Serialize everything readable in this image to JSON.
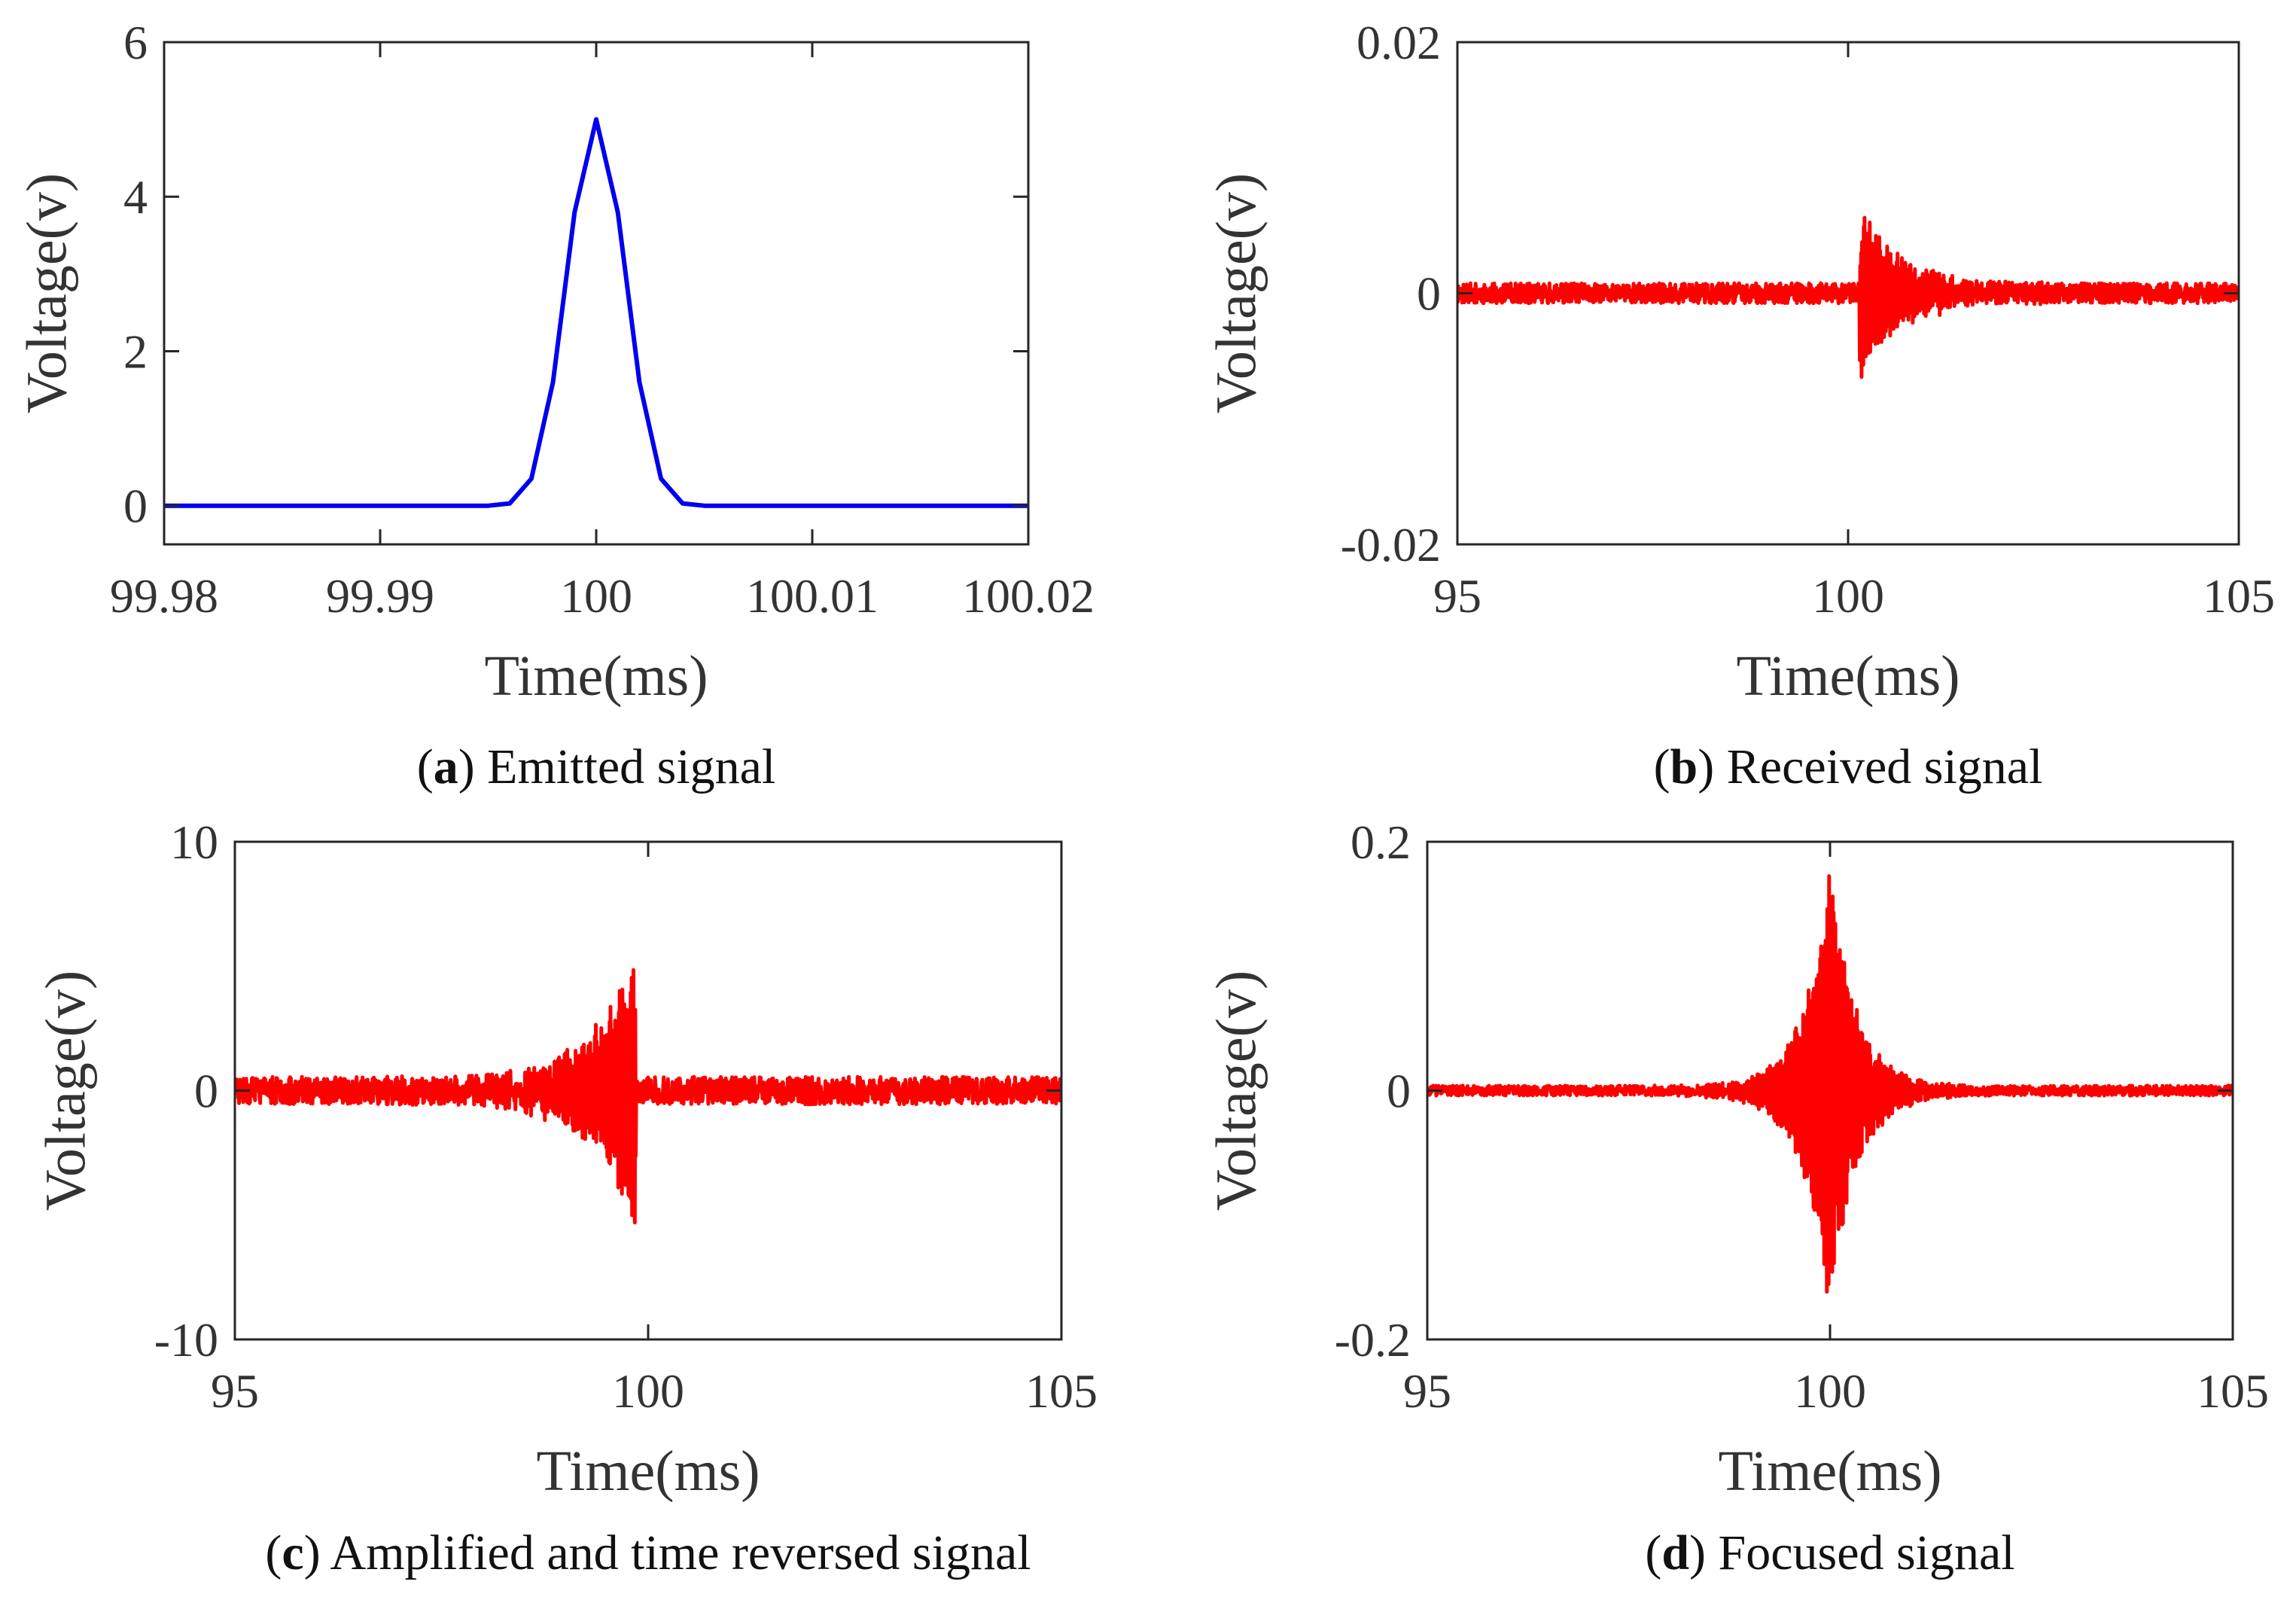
{
  "chart_data": [
    {
      "id": "a",
      "type": "line",
      "caption_letter": "a",
      "caption_text": "Emitted signal",
      "xlabel": "Time(ms)",
      "ylabel": "Voltage(v)",
      "xlim": [
        99.98,
        100.02
      ],
      "ylim": [
        -0.5,
        6
      ],
      "xticks": [
        99.98,
        99.99,
        100,
        100.01,
        100.02
      ],
      "xtick_labels": [
        "99.98",
        "99.99",
        "100",
        "100.01",
        "100.02"
      ],
      "yticks": [
        0,
        2,
        4,
        6
      ],
      "ytick_labels": [
        "0",
        "2",
        "4",
        "6"
      ],
      "series": [
        {
          "name": "Emitted signal",
          "color": "#0000ee",
          "x": [
            99.98,
            99.995,
            99.996,
            99.997,
            99.998,
            99.999,
            100.0,
            100.001,
            100.002,
            100.003,
            100.004,
            100.005,
            100.02
          ],
          "values": [
            0,
            0,
            0.03,
            0.35,
            1.6,
            3.8,
            5.0,
            3.8,
            1.6,
            0.35,
            0.03,
            0,
            0
          ]
        }
      ]
    },
    {
      "id": "b",
      "type": "line",
      "caption_letter": "b",
      "caption_text": "Received signal",
      "xlabel": "Time(ms)",
      "ylabel": "Voltage(v)",
      "xlim": [
        95,
        105
      ],
      "ylim": [
        -0.02,
        0.02
      ],
      "xticks": [
        95,
        100,
        105
      ],
      "xtick_labels": [
        "95",
        "100",
        "105"
      ],
      "yticks": [
        -0.02,
        0,
        0.02
      ],
      "ytick_labels": [
        "-0.02",
        "0",
        "0.02"
      ],
      "series": [
        {
          "name": "Received signal",
          "color": "#ff0000",
          "signal_model": {
            "start": 95,
            "end": 105,
            "burst_onset": 100.15,
            "peak_amplitude": 0.0065,
            "decay_ms": 0.55,
            "rise_ms": 0,
            "noise_amplitude": 0.0008,
            "seed": 11
          }
        }
      ]
    },
    {
      "id": "c",
      "type": "line",
      "caption_letter": "c",
      "caption_text": "Amplified and time reversed signal",
      "xlabel": "Time(ms)",
      "ylabel": "Voltage(v)",
      "xlim": [
        95,
        105
      ],
      "ylim": [
        -10,
        10
      ],
      "xticks": [
        95,
        100,
        105
      ],
      "xtick_labels": [
        "95",
        "100",
        "105"
      ],
      "yticks": [
        -10,
        0,
        10
      ],
      "ytick_labels": [
        "-10",
        "0",
        "10"
      ],
      "series": [
        {
          "name": "Amplified and time reversed signal",
          "color": "#ff0000",
          "signal_model": {
            "start": 95,
            "end": 105,
            "burst_onset": 99.85,
            "peak_amplitude": 5.3,
            "decay_ms": 0.55,
            "reversed": true,
            "noise_amplitude": 0.55,
            "seed": 23
          }
        }
      ]
    },
    {
      "id": "d",
      "type": "line",
      "caption_letter": "d",
      "caption_text": "Focused signal",
      "xlabel": "Time(ms)",
      "ylabel": "Voltage(v)",
      "xlim": [
        95,
        105
      ],
      "ylim": [
        -0.2,
        0.2
      ],
      "xticks": [
        95,
        100,
        105
      ],
      "xtick_labels": [
        "95",
        "100",
        "105"
      ],
      "yticks": [
        -0.2,
        0,
        0.2
      ],
      "ytick_labels": [
        "-0.2",
        "0",
        "0.2"
      ],
      "series": [
        {
          "name": "Focused signal",
          "color": "#ff0000",
          "signal_model": {
            "start": 95,
            "end": 105,
            "center": 100,
            "peak_amplitude": 0.18,
            "symmetric_width_ms": 0.6,
            "noise_amplitude": 0.004,
            "seed": 37
          }
        }
      ]
    }
  ]
}
